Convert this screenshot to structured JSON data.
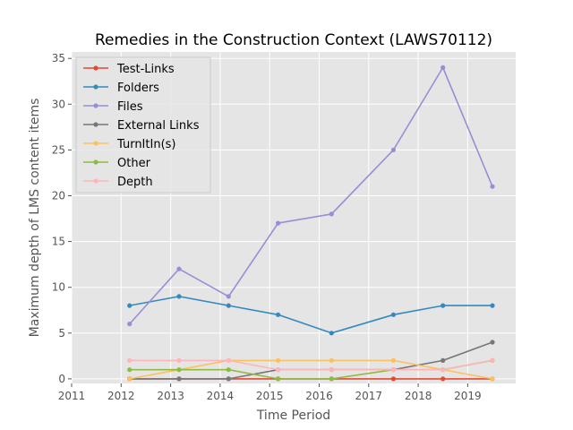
{
  "chart_data": {
    "type": "line",
    "title": "Remedies in the Construction Context (LAWS70112)",
    "xlabel": "Time Period",
    "ylabel": "Maximum depth of LMS content items",
    "xlim": [
      2011.0,
      2019.97
    ],
    "ylim": [
      -0.5,
      35.7
    ],
    "x_ticks": [
      2011,
      2012,
      2013,
      2014,
      2015,
      2016,
      2017,
      2018,
      2019
    ],
    "y_ticks": [
      0,
      5,
      10,
      15,
      20,
      25,
      30,
      35
    ],
    "grid": true,
    "legend_position": "top-left",
    "x": [
      2012.17,
      2013.17,
      2014.17,
      2015.17,
      2016.25,
      2017.5,
      2018.5,
      2019.5
    ],
    "series": [
      {
        "name": "Test-Links",
        "color": "#e24a33",
        "values": [
          0,
          0,
          0,
          0,
          0,
          0,
          0,
          0
        ]
      },
      {
        "name": "Folders",
        "color": "#348abd",
        "values": [
          8,
          9,
          8,
          7,
          5,
          7,
          8,
          8
        ]
      },
      {
        "name": "Files",
        "color": "#988ed5",
        "values": [
          6,
          12,
          9,
          17,
          18,
          25,
          34,
          21
        ]
      },
      {
        "name": "External Links",
        "color": "#777777",
        "values": [
          0,
          0,
          0,
          1,
          1,
          1,
          2,
          4
        ]
      },
      {
        "name": "TurnItIn(s)",
        "color": "#fbc15e",
        "values": [
          0,
          1,
          2,
          2,
          2,
          2,
          1,
          0
        ]
      },
      {
        "name": "Other",
        "color": "#8eba42",
        "values": [
          1,
          1,
          1,
          0,
          0,
          1,
          1,
          2
        ]
      },
      {
        "name": "Depth",
        "color": "#ffb5b8",
        "values": [
          2,
          2,
          2,
          1,
          1,
          1,
          1,
          2
        ]
      }
    ]
  }
}
